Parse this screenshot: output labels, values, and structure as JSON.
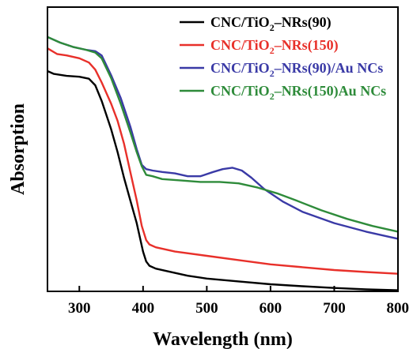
{
  "chart_data": {
    "type": "line",
    "xlabel": "Wavelength (nm)",
    "ylabel": "Absorption",
    "xlim": [
      250,
      800
    ],
    "ylim": [
      0,
      1
    ],
    "x_ticks": [
      300,
      400,
      500,
      600,
      700,
      800
    ],
    "y_ticks": [],
    "legend_position": "top-right",
    "series": [
      {
        "name_parts": [
          "CNC/TiO",
          "2",
          "–NRs(90)"
        ],
        "color": "#000000",
        "points": [
          [
            250,
            0.775
          ],
          [
            260,
            0.765
          ],
          [
            280,
            0.758
          ],
          [
            300,
            0.755
          ],
          [
            315,
            0.748
          ],
          [
            325,
            0.725
          ],
          [
            335,
            0.67
          ],
          [
            350,
            0.57
          ],
          [
            360,
            0.49
          ],
          [
            370,
            0.4
          ],
          [
            380,
            0.32
          ],
          [
            390,
            0.24
          ],
          [
            400,
            0.14
          ],
          [
            405,
            0.105
          ],
          [
            410,
            0.09
          ],
          [
            420,
            0.08
          ],
          [
            440,
            0.07
          ],
          [
            470,
            0.055
          ],
          [
            500,
            0.045
          ],
          [
            550,
            0.035
          ],
          [
            600,
            0.025
          ],
          [
            650,
            0.018
          ],
          [
            700,
            0.012
          ],
          [
            750,
            0.007
          ],
          [
            800,
            0.004
          ]
        ]
      },
      {
        "name_parts": [
          "CNC/TiO",
          "2",
          "–NRs(150)"
        ],
        "color": "#e8302a",
        "points": [
          [
            250,
            0.855
          ],
          [
            265,
            0.835
          ],
          [
            280,
            0.83
          ],
          [
            300,
            0.82
          ],
          [
            315,
            0.805
          ],
          [
            325,
            0.78
          ],
          [
            335,
            0.735
          ],
          [
            350,
            0.66
          ],
          [
            360,
            0.6
          ],
          [
            370,
            0.52
          ],
          [
            380,
            0.42
          ],
          [
            390,
            0.32
          ],
          [
            398,
            0.23
          ],
          [
            405,
            0.18
          ],
          [
            410,
            0.165
          ],
          [
            420,
            0.155
          ],
          [
            450,
            0.14
          ],
          [
            500,
            0.125
          ],
          [
            550,
            0.11
          ],
          [
            600,
            0.095
          ],
          [
            650,
            0.085
          ],
          [
            700,
            0.075
          ],
          [
            750,
            0.068
          ],
          [
            800,
            0.062
          ]
        ]
      },
      {
        "name_parts": [
          "CNC/TiO",
          "2",
          "–NRs(90)/Au NCs"
        ],
        "color": "#3a3aa6",
        "points": [
          [
            250,
            0.895
          ],
          [
            270,
            0.875
          ],
          [
            290,
            0.86
          ],
          [
            310,
            0.85
          ],
          [
            325,
            0.845
          ],
          [
            335,
            0.83
          ],
          [
            350,
            0.76
          ],
          [
            365,
            0.68
          ],
          [
            380,
            0.58
          ],
          [
            390,
            0.5
          ],
          [
            398,
            0.445
          ],
          [
            405,
            0.43
          ],
          [
            415,
            0.425
          ],
          [
            430,
            0.42
          ],
          [
            450,
            0.415
          ],
          [
            470,
            0.405
          ],
          [
            490,
            0.405
          ],
          [
            510,
            0.42
          ],
          [
            525,
            0.43
          ],
          [
            540,
            0.435
          ],
          [
            555,
            0.425
          ],
          [
            570,
            0.4
          ],
          [
            590,
            0.36
          ],
          [
            620,
            0.315
          ],
          [
            650,
            0.28
          ],
          [
            700,
            0.24
          ],
          [
            750,
            0.21
          ],
          [
            800,
            0.185
          ]
        ]
      },
      {
        "name_parts": [
          "CNC/TiO",
          "2",
          "–NRs(150)Au NCs"
        ],
        "color": "#2e8b3a",
        "points": [
          [
            250,
            0.895
          ],
          [
            270,
            0.875
          ],
          [
            290,
            0.86
          ],
          [
            310,
            0.85
          ],
          [
            325,
            0.84
          ],
          [
            335,
            0.82
          ],
          [
            350,
            0.75
          ],
          [
            365,
            0.66
          ],
          [
            380,
            0.56
          ],
          [
            390,
            0.49
          ],
          [
            398,
            0.44
          ],
          [
            405,
            0.41
          ],
          [
            415,
            0.405
          ],
          [
            430,
            0.395
          ],
          [
            460,
            0.39
          ],
          [
            490,
            0.385
          ],
          [
            520,
            0.385
          ],
          [
            550,
            0.38
          ],
          [
            580,
            0.365
          ],
          [
            610,
            0.345
          ],
          [
            640,
            0.32
          ],
          [
            680,
            0.285
          ],
          [
            720,
            0.255
          ],
          [
            760,
            0.23
          ],
          [
            800,
            0.21
          ]
        ]
      }
    ]
  }
}
